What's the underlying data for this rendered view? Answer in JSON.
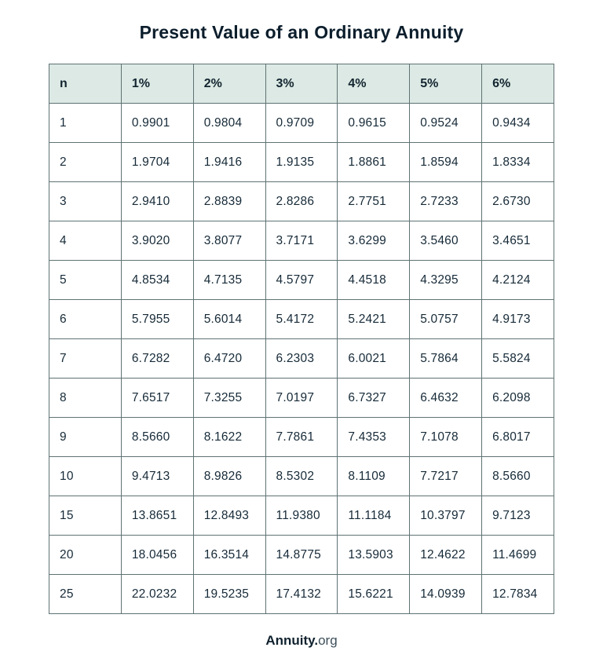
{
  "title": "Present Value of an Ordinary Annuity",
  "footer": {
    "brand_bold": "Annuity.",
    "brand_light": "org"
  },
  "colors": {
    "header_bg": "#dce9e4",
    "border": "#5f7273",
    "title_text": "#0c1e2c",
    "body_text": "#162a38"
  },
  "chart_data": {
    "type": "table",
    "title": "Present Value of an Ordinary Annuity",
    "columns": [
      "n",
      "1%",
      "2%",
      "3%",
      "4%",
      "5%",
      "6%"
    ],
    "rows": [
      [
        "1",
        "0.9901",
        "0.9804",
        "0.9709",
        "0.9615",
        "0.9524",
        "0.9434"
      ],
      [
        "2",
        "1.9704",
        "1.9416",
        "1.9135",
        "1.8861",
        "1.8594",
        "1.8334"
      ],
      [
        "3",
        "2.9410",
        "2.8839",
        "2.8286",
        "2.7751",
        "2.7233",
        "2.6730"
      ],
      [
        "4",
        "3.9020",
        "3.8077",
        "3.7171",
        "3.6299",
        "3.5460",
        "3.4651"
      ],
      [
        "5",
        "4.8534",
        "4.7135",
        "4.5797",
        "4.4518",
        "4.3295",
        "4.2124"
      ],
      [
        "6",
        "5.7955",
        "5.6014",
        "5.4172",
        "5.2421",
        "5.0757",
        "4.9173"
      ],
      [
        "7",
        "6.7282",
        "6.4720",
        "6.2303",
        "6.0021",
        "5.7864",
        "5.5824"
      ],
      [
        "8",
        "7.6517",
        "7.3255",
        "7.0197",
        "6.7327",
        "6.4632",
        "6.2098"
      ],
      [
        "9",
        "8.5660",
        "8.1622",
        "7.7861",
        "7.4353",
        "7.1078",
        "6.8017"
      ],
      [
        "10",
        "9.4713",
        "8.9826",
        "8.5302",
        "8.1109",
        "7.7217",
        "8.5660"
      ],
      [
        "15",
        "13.8651",
        "12.8493",
        "11.9380",
        "11.1184",
        "10.3797",
        "9.7123"
      ],
      [
        "20",
        "18.0456",
        "16.3514",
        "14.8775",
        "13.5903",
        "12.4622",
        "11.4699"
      ],
      [
        "25",
        "22.0232",
        "19.5235",
        "17.4132",
        "15.6221",
        "14.0939",
        "12.7834"
      ]
    ]
  }
}
